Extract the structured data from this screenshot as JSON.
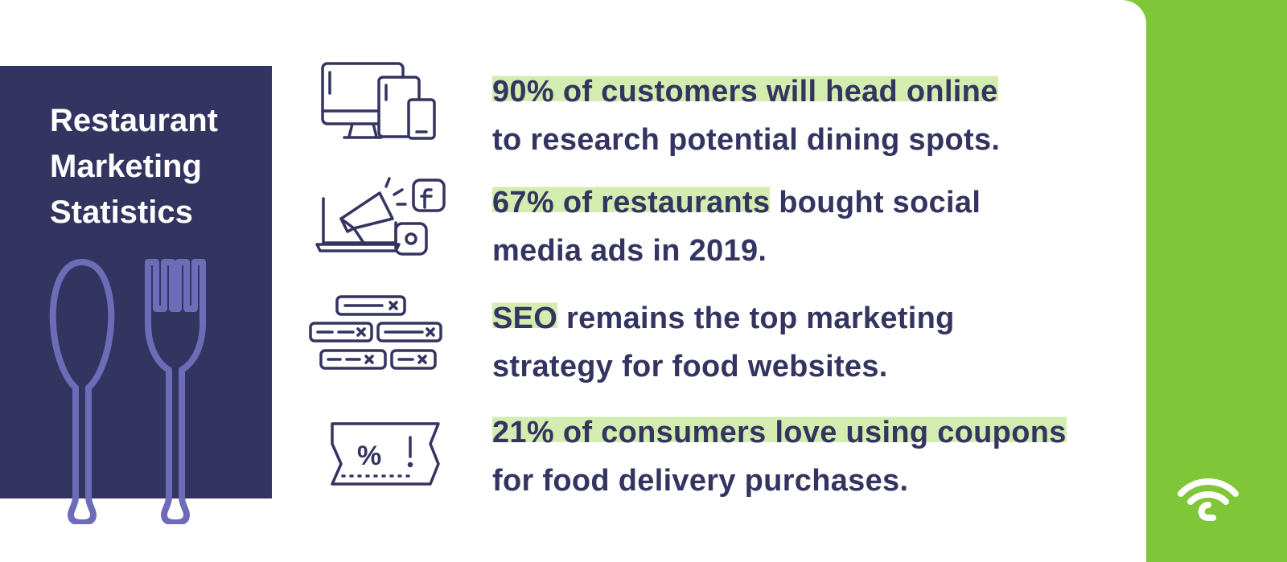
{
  "panel": {
    "title_lines": [
      "Restaurant",
      "Marketing",
      "Statistics"
    ]
  },
  "stats": [
    {
      "icon": "devices-icon",
      "line1_highlight": "90% of customers will head online",
      "line1_rest": "",
      "line2": "to research potential dining spots."
    },
    {
      "icon": "megaphone-social-icon",
      "line1_highlight": "67% of restaurants",
      "line1_rest": " bought social",
      "line2": "media ads in 2019."
    },
    {
      "icon": "search-bars-icon",
      "line1_highlight": "SEO",
      "line1_rest": " remains the top marketing",
      "line2": "strategy for food websites."
    },
    {
      "icon": "coupon-icon",
      "line1_highlight": "21% of consumers love using coupons",
      "line1_rest": "",
      "line2": "for food delivery purchases."
    }
  ],
  "colors": {
    "navy": "#343461",
    "lavender": "#6c6cb8",
    "highlight": "#d3ecb0",
    "green": "#7fc638"
  }
}
